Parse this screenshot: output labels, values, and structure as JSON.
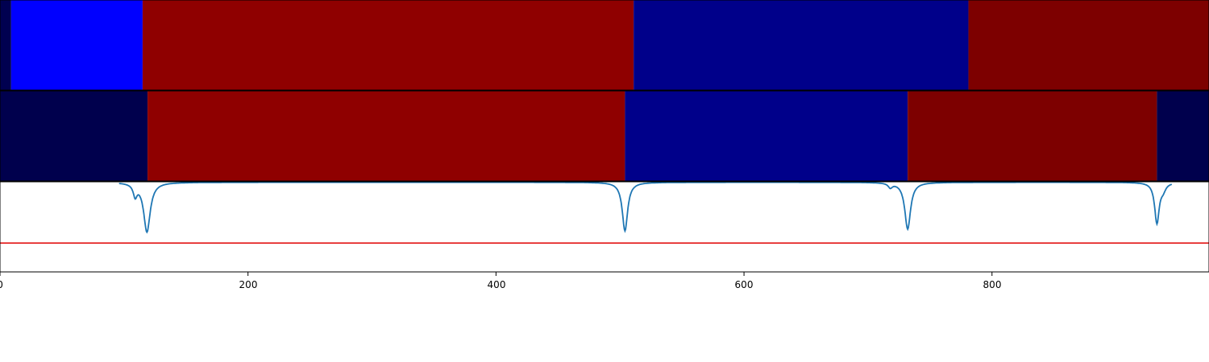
{
  "chart_data": [
    {
      "type": "heatmap",
      "name": "top-segment-band",
      "xlim": [
        0,
        975
      ],
      "segments": [
        {
          "start": 0,
          "end": 9,
          "color": "#000050"
        },
        {
          "start": 9,
          "end": 115,
          "color": "#0000ff"
        },
        {
          "start": 115,
          "end": 511,
          "color": "#8f0000"
        },
        {
          "start": 511,
          "end": 781,
          "color": "#00008a"
        },
        {
          "start": 781,
          "end": 975,
          "color": "#7d0000"
        }
      ]
    },
    {
      "type": "heatmap",
      "name": "middle-segment-band",
      "xlim": [
        0,
        975
      ],
      "segments": [
        {
          "start": 0,
          "end": 119,
          "color": "#00004d"
        },
        {
          "start": 119,
          "end": 504,
          "color": "#8f0000"
        },
        {
          "start": 504,
          "end": 732,
          "color": "#00008a"
        },
        {
          "start": 732,
          "end": 933,
          "color": "#7d0000"
        },
        {
          "start": 933,
          "end": 975,
          "color": "#00004d"
        }
      ]
    },
    {
      "type": "line",
      "name": "bottom-line-panel",
      "xlim": [
        0,
        975
      ],
      "ylim": [
        0,
        1
      ],
      "threshold": 0.32,
      "threshold_color": "#e00000",
      "line_color": "#1f77b4",
      "curve": {
        "x_range": [
          96,
          945
        ],
        "baseline": 0.995,
        "dips": [
          {
            "center": 118.5,
            "depth": 0.55,
            "width": 3.2
          },
          {
            "center": 109,
            "depth": 0.13,
            "width": 1.8
          },
          {
            "center": 504,
            "depth": 0.54,
            "width": 2.6
          },
          {
            "center": 732,
            "depth": 0.52,
            "width": 2.8
          },
          {
            "center": 718,
            "depth": 0.05,
            "width": 2.0
          },
          {
            "center": 933,
            "depth": 0.45,
            "width": 2.2
          },
          {
            "center": 938,
            "depth": 0.07,
            "width": 2.5
          }
        ]
      },
      "xticks": [
        0,
        200,
        400,
        600,
        800
      ],
      "xtick_labels": [
        "0",
        "200",
        "400",
        "600",
        "800"
      ]
    }
  ]
}
